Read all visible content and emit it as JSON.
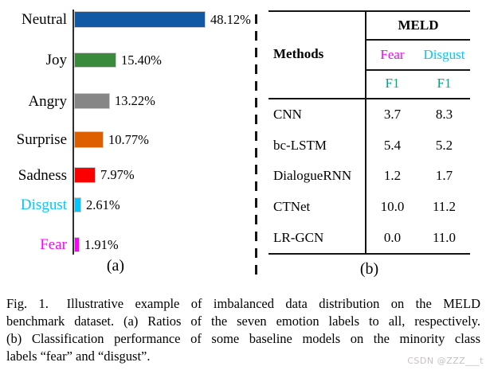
{
  "chart_data": [
    {
      "type": "bar",
      "orientation": "horizontal",
      "panel_label": "(a)",
      "categories": [
        "Neutral",
        "Joy",
        "Angry",
        "Surprise",
        "Sadness",
        "Disgust",
        "Fear"
      ],
      "values": [
        48.12,
        15.4,
        13.22,
        10.77,
        7.97,
        2.61,
        1.91
      ],
      "value_labels": [
        "48.12%",
        "15.40%",
        "13.22%",
        "10.77%",
        "7.97%",
        "2.61%",
        "1.91%"
      ],
      "bar_colors": [
        "#1159a5",
        "#3a8b3c",
        "#868686",
        "#dd5f00",
        "#fb0000",
        "#00c8ff",
        "#ff00ff"
      ],
      "category_label_colors": [
        "#000000",
        "#000000",
        "#000000",
        "#000000",
        "#000000",
        "#00c8ff",
        "#ff00ff"
      ],
      "xlim": [
        0,
        50
      ],
      "grid": false,
      "legend": false
    },
    {
      "type": "table",
      "panel_label": "(b)",
      "group_header": "MELD",
      "row_header": "Methods",
      "sub_headers": [
        {
          "label": "Fear",
          "color": "#ff00ff"
        },
        {
          "label": "Disgust",
          "color": "#00c8ff"
        }
      ],
      "metric_row": {
        "labels": [
          "F1",
          "F1"
        ],
        "color": "#00a87a"
      },
      "rows": [
        {
          "method": "CNN",
          "fear_f1": "3.7",
          "disgust_f1": "8.3"
        },
        {
          "method": "bc-LSTM",
          "fear_f1": "5.4",
          "disgust_f1": "5.2"
        },
        {
          "method": "DialogueRNN",
          "fear_f1": "1.2",
          "disgust_f1": "1.7"
        },
        {
          "method": "CTNet",
          "fear_f1": "10.0",
          "disgust_f1": "11.2"
        },
        {
          "method": "LR-GCN",
          "fear_f1": "0.0",
          "disgust_f1": "11.0"
        }
      ]
    }
  ],
  "caption": {
    "lines": [
      "Fig. 1.  Illustrative example of imbalanced data distribution on the MELD",
      "benchmark dataset. (a) Ratios of the seven emotion labels to all, respectively.",
      "(b) Classification performance of some baseline models on the minority class",
      "labels “fear” and “disgust”."
    ],
    "full_text": "Fig. 1. Illustrative example of imbalanced data distribution on the MELD benchmark dataset. (a) Ratios of the seven emotion labels to all, respectively. (b) Classification performance of some baseline models on the minority class labels “fear” and “disgust”."
  },
  "watermark": "CSDN @ZZZ___t"
}
